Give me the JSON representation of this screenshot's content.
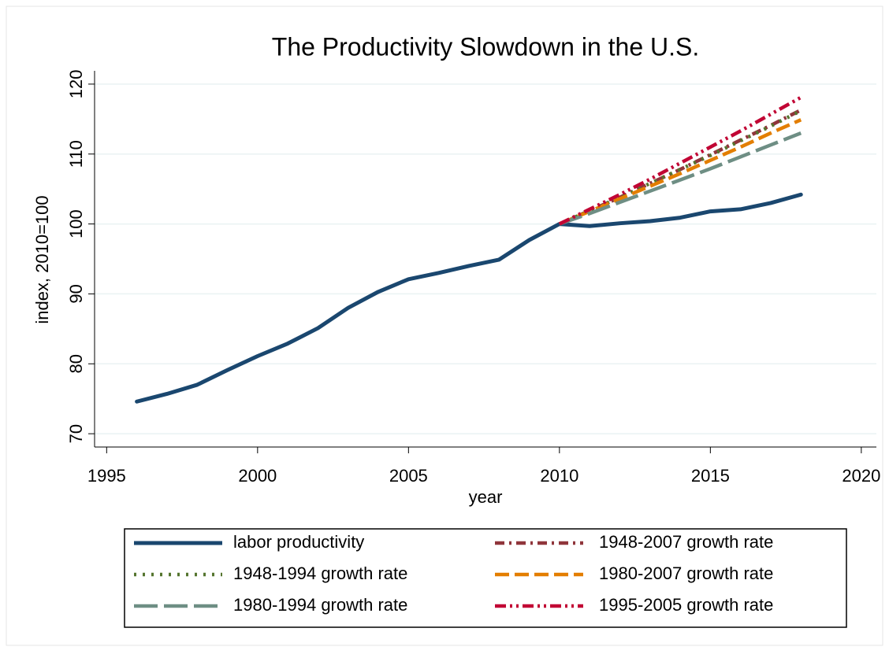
{
  "chart_data": {
    "type": "line",
    "title": "The Productivity Slowdown in the U.S.",
    "x_label": "year",
    "y_label": "index, 2010=100",
    "x": [
      1996,
      1997,
      1998,
      1999,
      2000,
      2001,
      2002,
      2003,
      2004,
      2005,
      2006,
      2007,
      2008,
      2009,
      2010,
      2011,
      2012,
      2013,
      2014,
      2015,
      2016,
      2017,
      2018
    ],
    "series": [
      {
        "name": "labor productivity",
        "color": "#1a476f",
        "values": [
          74.6,
          75.7,
          77.0,
          79.1,
          81.1,
          82.9,
          85.1,
          88.0,
          90.3,
          92.1,
          93.0,
          94.0,
          94.9,
          97.7,
          100,
          99.7,
          100.1,
          100.4,
          100.9,
          101.8,
          102.1,
          103.0,
          104.2
        ]
      },
      {
        "name": "1948-2007 growth rate",
        "color": "#90353b",
        "values": [
          null,
          null,
          null,
          null,
          null,
          null,
          null,
          null,
          null,
          null,
          null,
          null,
          null,
          null,
          100,
          101.9,
          103.8,
          105.8,
          107.8,
          109.9,
          112.0,
          114.1,
          116.3
        ]
      },
      {
        "name": "1948-1994 growth rate",
        "color": "#55752f",
        "values": [
          null,
          null,
          null,
          null,
          null,
          null,
          null,
          null,
          null,
          null,
          null,
          null,
          null,
          null,
          100,
          101.9,
          103.8,
          105.8,
          107.8,
          109.8,
          111.9,
          114.0,
          116.2
        ]
      },
      {
        "name": "1980-2007 growth rate",
        "color": "#e37e00",
        "values": [
          null,
          null,
          null,
          null,
          null,
          null,
          null,
          null,
          null,
          null,
          null,
          null,
          null,
          null,
          100,
          101.8,
          103.6,
          105.4,
          107.2,
          109.1,
          111.0,
          113.0,
          114.9
        ]
      },
      {
        "name": "1980-1994 growth rate",
        "color": "#6e8e84",
        "values": [
          null,
          null,
          null,
          null,
          null,
          null,
          null,
          null,
          null,
          null,
          null,
          null,
          null,
          null,
          100,
          101.5,
          103.1,
          104.7,
          106.3,
          107.9,
          109.6,
          111.3,
          113.0
        ]
      },
      {
        "name": "1995-2005 growth rate",
        "color": "#c10534",
        "values": [
          null,
          null,
          null,
          null,
          null,
          null,
          null,
          null,
          null,
          null,
          null,
          null,
          null,
          null,
          100,
          102.1,
          104.2,
          106.4,
          108.7,
          111.0,
          113.3,
          115.7,
          118.1
        ]
      }
    ],
    "xlim": [
      1994.6,
      2020.5
    ],
    "ylim": [
      68.1,
      121.9
    ],
    "xticks": [
      1995,
      2000,
      2005,
      2010,
      2015,
      2020
    ],
    "yticks": [
      70,
      80,
      90,
      100,
      110,
      120
    ],
    "grid": true
  }
}
